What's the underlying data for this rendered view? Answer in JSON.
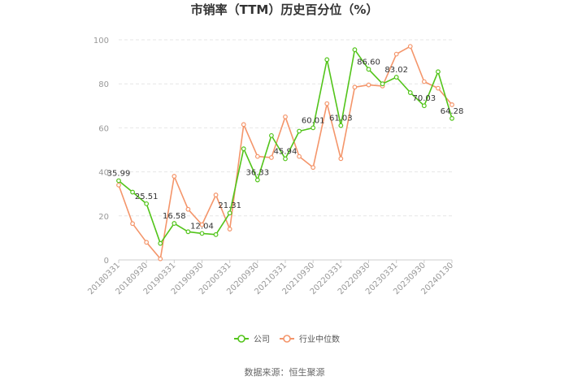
{
  "chart_data": {
    "type": "line",
    "title": "市销率（TTM）历史百分位（%）",
    "source": "数据来源：恒生聚源",
    "ylim": [
      0,
      100
    ],
    "yticks": [
      0,
      20,
      40,
      60,
      80,
      100
    ],
    "xtick_labels": [
      "20180331",
      "20180930",
      "20190331",
      "20190930",
      "20200331",
      "20200930",
      "20210331",
      "20210930",
      "20220331",
      "20220930",
      "20230331",
      "20230930",
      "20240130"
    ],
    "grid": true,
    "legend_position": "bottom",
    "series": [
      {
        "name": "公司",
        "color": "#52c41a",
        "values": [
          35.99,
          30.8,
          25.51,
          7.5,
          16.58,
          12.8,
          12.04,
          11.5,
          21.31,
          50.5,
          36.33,
          56.5,
          45.94,
          58.5,
          60.01,
          91.0,
          61.03,
          95.5,
          86.6,
          80.0,
          83.02,
          76.0,
          70.03,
          85.5,
          64.28
        ]
      },
      {
        "name": "行业中位数",
        "color": "#f4956a",
        "values": [
          34.0,
          16.5,
          8.0,
          0.5,
          38.0,
          23.0,
          16.0,
          29.5,
          14.0,
          61.5,
          47.0,
          46.5,
          65.0,
          47.0,
          42.0,
          71.0,
          46.0,
          78.5,
          79.5,
          79.0,
          93.5,
          97.0,
          81.0,
          78.0,
          70.5
        ]
      }
    ],
    "data_labels": [
      {
        "index": 0,
        "text": "35.99"
      },
      {
        "index": 2,
        "text": "25.51"
      },
      {
        "index": 4,
        "text": "16.58"
      },
      {
        "index": 6,
        "text": "12.04"
      },
      {
        "index": 8,
        "text": "21.31"
      },
      {
        "index": 10,
        "text": "36.33"
      },
      {
        "index": 12,
        "text": "45.94"
      },
      {
        "index": 14,
        "text": "60.01"
      },
      {
        "index": 16,
        "text": "61.03"
      },
      {
        "index": 18,
        "text": "86.60"
      },
      {
        "index": 20,
        "text": "83.02"
      },
      {
        "index": 22,
        "text": "70.03"
      },
      {
        "index": 24,
        "text": "64.28"
      }
    ]
  }
}
